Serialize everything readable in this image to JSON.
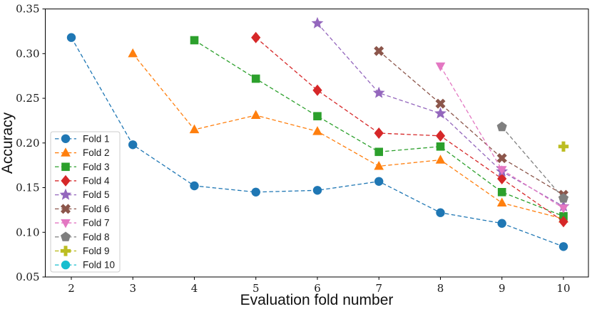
{
  "chart_data": {
    "type": "line",
    "title": "",
    "xlabel": "Evaluation fold number",
    "ylabel": "Accuracy",
    "xlim": [
      1.577,
      10.406
    ],
    "ylim": [
      0.05,
      0.35
    ],
    "xticks": [
      2,
      3,
      4,
      5,
      6,
      7,
      8,
      9,
      10
    ],
    "yticks": [
      0.05,
      0.1,
      0.15,
      0.2,
      0.25,
      0.3,
      0.35
    ],
    "grid": false,
    "line_style": "dashed",
    "legend_position": "center-left",
    "series": [
      {
        "name": "Fold 1",
        "color": "#1f77b4",
        "marker": "circle",
        "x": [
          2,
          3,
          4,
          5,
          6,
          7,
          8,
          9,
          10
        ],
        "y": [
          0.318,
          0.198,
          0.152,
          0.145,
          0.147,
          0.157,
          0.122,
          0.11,
          0.084
        ]
      },
      {
        "name": "Fold 2",
        "color": "#ff7f0e",
        "marker": "triangle-up",
        "x": [
          3,
          4,
          5,
          6,
          7,
          8,
          9,
          10
        ],
        "y": [
          0.3,
          0.215,
          0.231,
          0.213,
          0.174,
          0.181,
          0.133,
          0.115
        ]
      },
      {
        "name": "Fold 3",
        "color": "#2ca02c",
        "marker": "square",
        "x": [
          4,
          5,
          6,
          7,
          8,
          9,
          10
        ],
        "y": [
          0.315,
          0.272,
          0.23,
          0.19,
          0.196,
          0.145,
          0.118
        ]
      },
      {
        "name": "Fold 4",
        "color": "#d62728",
        "marker": "diamond",
        "x": [
          5,
          6,
          7,
          8,
          9,
          10
        ],
        "y": [
          0.318,
          0.259,
          0.211,
          0.208,
          0.16,
          0.112
        ]
      },
      {
        "name": "Fold 5",
        "color": "#9467bd",
        "marker": "star",
        "x": [
          6,
          7,
          8,
          9,
          10
        ],
        "y": [
          0.334,
          0.256,
          0.233,
          0.168,
          0.129
        ]
      },
      {
        "name": "Fold 6",
        "color": "#8c564b",
        "marker": "x-filled",
        "x": [
          7,
          8,
          9,
          10
        ],
        "y": [
          0.303,
          0.244,
          0.183,
          0.142
        ]
      },
      {
        "name": "Fold 7",
        "color": "#e377c2",
        "marker": "triangle-down",
        "x": [
          8,
          9,
          10
        ],
        "y": [
          0.286,
          0.17,
          0.127
        ]
      },
      {
        "name": "Fold 8",
        "color": "#7f7f7f",
        "marker": "pentagon",
        "x": [
          9,
          10
        ],
        "y": [
          0.218,
          0.138
        ]
      },
      {
        "name": "Fold 9",
        "color": "#bcbd22",
        "marker": "plus-filled",
        "x": [
          10
        ],
        "y": [
          0.196
        ]
      },
      {
        "name": "Fold 10",
        "color": "#17becf",
        "marker": "circle",
        "x": [],
        "y": []
      }
    ]
  },
  "style": {
    "spine_color": "#000000",
    "tick_color": "#000000",
    "legend_border_color": "#cccccc",
    "legend_background": "#ffffff"
  }
}
